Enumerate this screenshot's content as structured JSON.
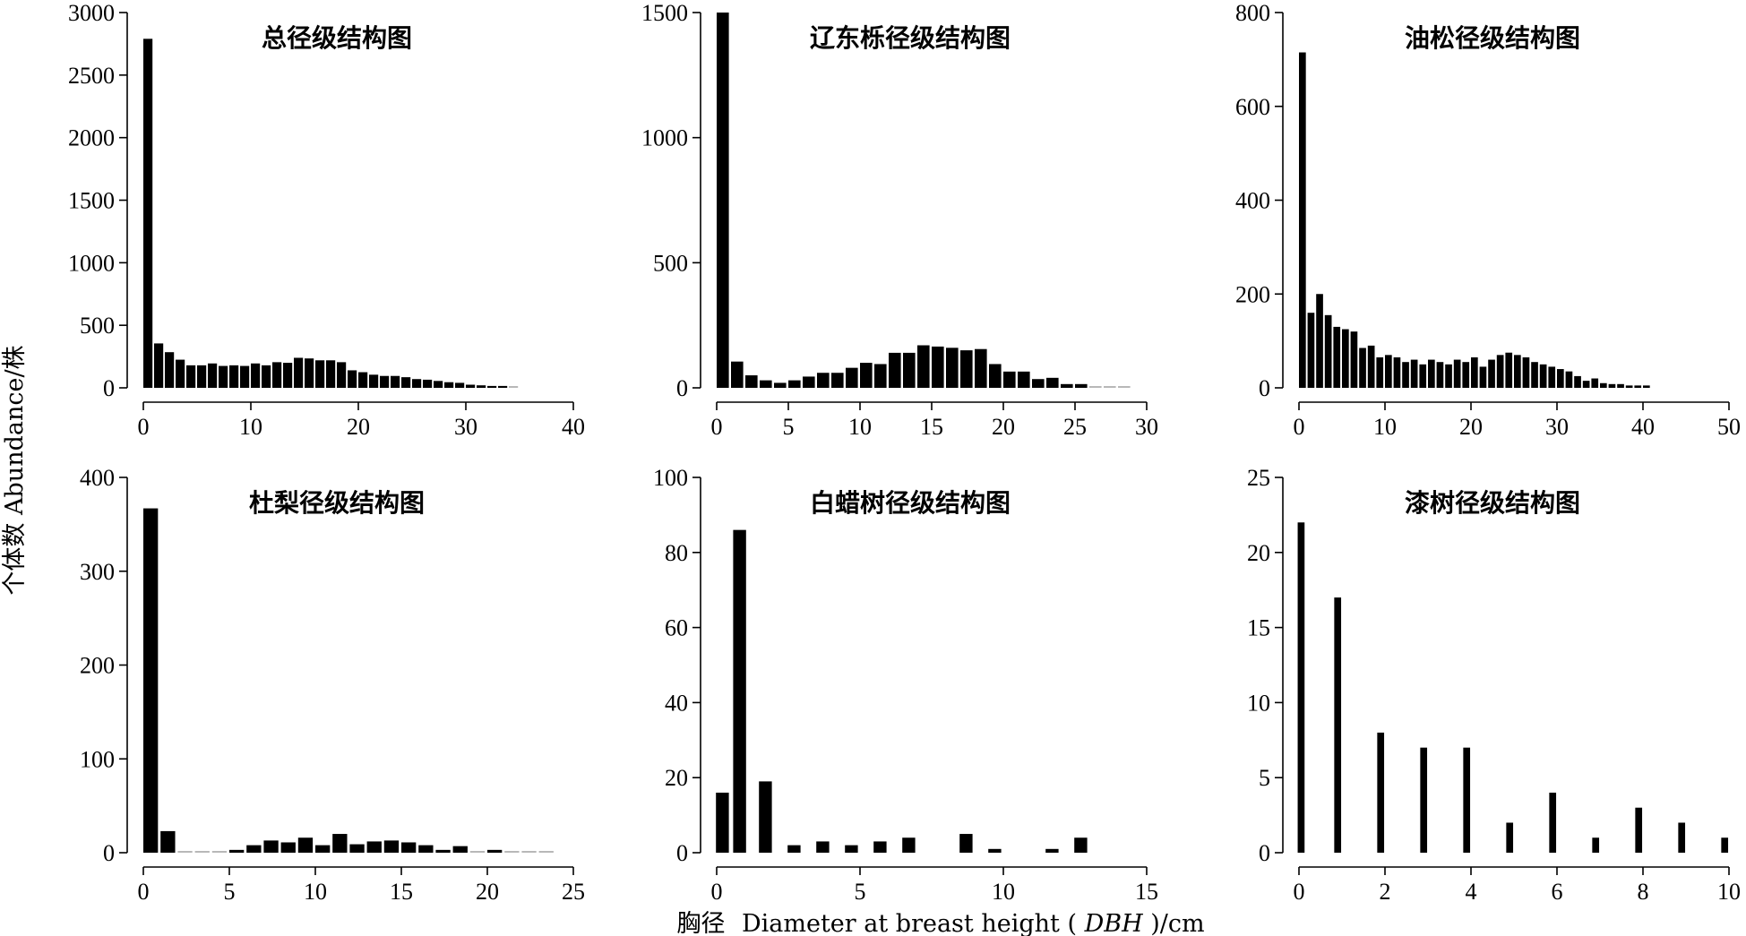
{
  "figure": {
    "ylabel": "个体数 Abundance/株",
    "xlabel_cn": "胸径",
    "xlabel_en": "Diameter at breast height (",
    "xlabel_abbr": "DBH",
    "xlabel_unit": ")/cm"
  },
  "chart_data": [
    {
      "type": "bar",
      "title": "总径级结构图",
      "xlim": [
        0,
        40
      ],
      "xticks": [
        0,
        10,
        20,
        30,
        40
      ],
      "ylim": [
        0,
        3000
      ],
      "yticks": [
        0,
        500,
        1000,
        1500,
        2000,
        2500,
        3000
      ],
      "bar_width": 0.85,
      "x": [
        0,
        1,
        2,
        3,
        4,
        5,
        6,
        7,
        8,
        9,
        10,
        11,
        12,
        13,
        14,
        15,
        16,
        17,
        18,
        19,
        20,
        21,
        22,
        23,
        24,
        25,
        26,
        27,
        28,
        29,
        30,
        31,
        32,
        33,
        34
      ],
      "values": [
        2790,
        355,
        285,
        225,
        180,
        180,
        195,
        175,
        180,
        175,
        195,
        180,
        205,
        200,
        240,
        235,
        220,
        220,
        205,
        140,
        125,
        105,
        95,
        95,
        85,
        70,
        65,
        55,
        45,
        40,
        25,
        20,
        15,
        15,
        8
      ]
    },
    {
      "type": "bar",
      "title": "辽东栎径级结构图",
      "xlim": [
        0,
        30
      ],
      "xticks": [
        0,
        5,
        10,
        15,
        20,
        25,
        30
      ],
      "ylim": [
        0,
        1500
      ],
      "yticks": [
        0,
        500,
        1000,
        1500
      ],
      "bar_width": 0.85,
      "x": [
        0,
        1,
        2,
        3,
        4,
        5,
        6,
        7,
        8,
        9,
        10,
        11,
        12,
        13,
        14,
        15,
        16,
        17,
        18,
        19,
        20,
        21,
        22,
        23,
        24,
        25,
        26,
        27,
        28
      ],
      "values": [
        1500,
        105,
        50,
        30,
        20,
        30,
        45,
        60,
        60,
        80,
        100,
        95,
        140,
        140,
        170,
        165,
        160,
        150,
        155,
        95,
        65,
        65,
        35,
        40,
        15,
        15,
        5,
        5,
        5
      ]
    },
    {
      "type": "bar",
      "title": "油松径级结构图",
      "xlim": [
        0,
        50
      ],
      "xticks": [
        0,
        10,
        20,
        30,
        40,
        50
      ],
      "ylim": [
        0,
        800
      ],
      "yticks": [
        0,
        200,
        400,
        600,
        800
      ],
      "bar_width": 0.8,
      "x": [
        0,
        1,
        2,
        3,
        4,
        5,
        6,
        7,
        8,
        9,
        10,
        11,
        12,
        13,
        14,
        15,
        16,
        17,
        18,
        19,
        20,
        21,
        22,
        23,
        24,
        25,
        26,
        27,
        28,
        29,
        30,
        31,
        32,
        33,
        34,
        35,
        36,
        37,
        38,
        39,
        40
      ],
      "values": [
        715,
        160,
        200,
        155,
        130,
        125,
        120,
        85,
        90,
        65,
        70,
        65,
        55,
        60,
        50,
        60,
        55,
        50,
        60,
        55,
        65,
        45,
        60,
        70,
        75,
        70,
        65,
        55,
        50,
        45,
        40,
        35,
        25,
        15,
        20,
        10,
        8,
        8,
        5,
        5,
        5
      ]
    },
    {
      "type": "bar",
      "title": "杜梨径级结构图",
      "xlim": [
        0,
        25
      ],
      "xticks": [
        0,
        5,
        10,
        15,
        20,
        25
      ],
      "ylim": [
        0,
        400
      ],
      "yticks": [
        0,
        100,
        200,
        300,
        400
      ],
      "bar_width": 0.85,
      "x": [
        0,
        1,
        2,
        3,
        4,
        5,
        6,
        7,
        8,
        9,
        10,
        11,
        12,
        13,
        14,
        15,
        16,
        17,
        18,
        19,
        20,
        21,
        22,
        23
      ],
      "values": [
        367,
        23,
        1,
        0,
        1,
        3,
        8,
        13,
        11,
        16,
        8,
        20,
        9,
        12,
        13,
        11,
        8,
        3,
        7,
        0,
        3,
        0,
        1,
        0
      ]
    },
    {
      "type": "bar",
      "title": "白蜡树径级结构图",
      "xlim": [
        0,
        15
      ],
      "xticks": [
        0,
        5,
        10,
        15
      ],
      "ylim": [
        0,
        100
      ],
      "yticks": [
        0,
        20,
        40,
        60,
        80,
        100
      ],
      "bar_width": 0.45,
      "x": [
        0.2,
        0.8,
        1.7,
        2.7,
        3.7,
        4.7,
        5.7,
        6.7,
        8.7,
        9.7,
        11.7,
        12.7
      ],
      "values": [
        16,
        86,
        19,
        2,
        3,
        2,
        3,
        4,
        5,
        1,
        1,
        4
      ]
    },
    {
      "type": "bar",
      "title": "漆树径级结构图",
      "xlim": [
        0,
        10
      ],
      "xticks": [
        0,
        2,
        4,
        6,
        8,
        10
      ],
      "ylim": [
        0,
        25
      ],
      "yticks": [
        0,
        5,
        10,
        15,
        20,
        25
      ],
      "bar_width": 0.16,
      "x": [
        0.05,
        0.9,
        1.9,
        2.9,
        3.9,
        4.9,
        5.9,
        6.9,
        7.9,
        8.9,
        9.9
      ],
      "values": [
        22,
        17,
        8,
        7,
        7,
        2,
        4,
        1,
        3,
        2,
        1
      ]
    }
  ]
}
